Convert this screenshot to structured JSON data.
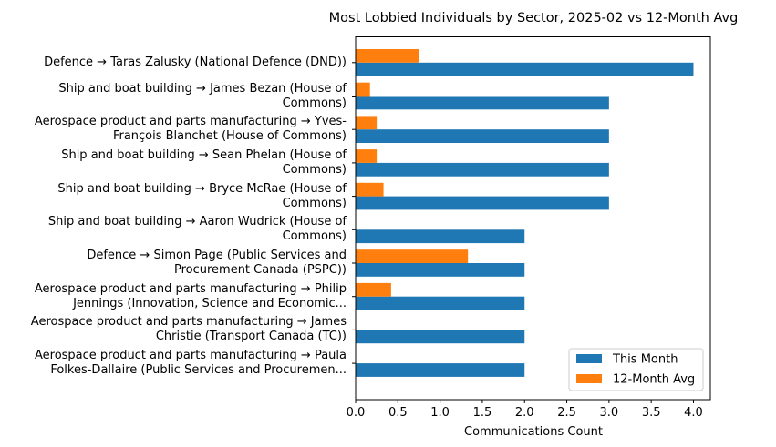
{
  "chart_data": {
    "type": "bar",
    "orientation": "horizontal",
    "title": "Most Lobbied Individuals by Sector, 2025-02 vs 12-Month Avg",
    "xlabel": "Communications Count",
    "ylabel": "",
    "xlim": [
      0,
      4.2
    ],
    "xticks": [
      "0.0",
      "0.5",
      "1.0",
      "1.5",
      "2.0",
      "2.5",
      "3.0",
      "3.5",
      "4.0"
    ],
    "grid": false,
    "legend_position": "lower-right",
    "categories": [
      [
        "Defence → Taras Zalusky (National Defence (DND))"
      ],
      [
        "Ship and boat building → James Bezan (House of",
        "Commons)"
      ],
      [
        "Aerospace product and parts manufacturing → Yves-",
        "François Blanchet (House of Commons)"
      ],
      [
        "Ship and boat building → Sean Phelan (House of",
        "Commons)"
      ],
      [
        "Ship and boat building → Bryce McRae (House of",
        "Commons)"
      ],
      [
        "Ship and boat building → Aaron Wudrick (House of",
        "Commons)"
      ],
      [
        "Defence → Simon Page (Public Services and",
        "Procurement Canada (PSPC))"
      ],
      [
        "Aerospace product and parts manufacturing → Philip",
        "Jennings (Innovation, Science and Economic..."
      ],
      [
        "Aerospace product and parts manufacturing → James",
        "Christie (Transport Canada (TC))"
      ],
      [
        "Aerospace product and parts manufacturing → Paula",
        "Folkes-Dallaire (Public Services and Procuremen..."
      ]
    ],
    "series": [
      {
        "name": "This Month",
        "color": "#1f77b4",
        "values": [
          4,
          3,
          3,
          3,
          3,
          2,
          2,
          2,
          2,
          2
        ]
      },
      {
        "name": "12-Month Avg",
        "color": "#ff7f0e",
        "values": [
          0.75,
          0.17,
          0.25,
          0.25,
          0.33,
          0,
          1.33,
          0.42,
          0,
          0
        ]
      }
    ]
  }
}
